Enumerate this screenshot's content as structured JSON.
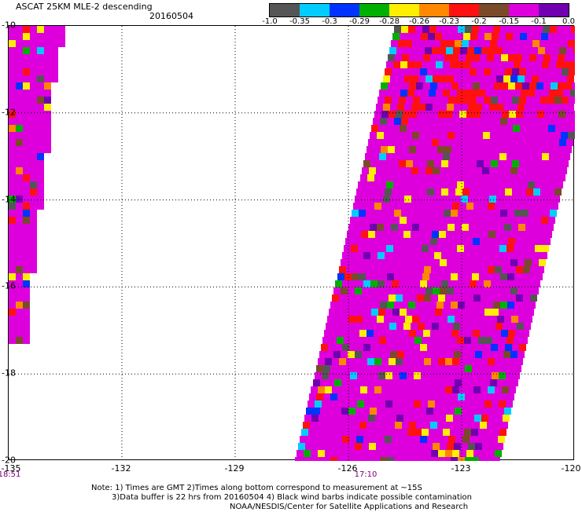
{
  "header": {
    "title": "ASCAT 25KM MLE-2 descending",
    "date": "20160504"
  },
  "colorbar": {
    "colors": [
      "#555555",
      "#00ccff",
      "#0033ff",
      "#00b000",
      "#ffee00",
      "#ff8800",
      "#ff1111",
      "#7a4a2a",
      "#dd00dd",
      "#7000b0"
    ],
    "tick_labels": [
      "-1.0",
      "-0.35",
      "-0.3",
      "-0.29",
      "-0.28",
      "-0.26",
      "-0.23",
      "-0.2",
      "-0.15",
      "-0.1",
      "0.0"
    ]
  },
  "axes": {
    "lat_labels": [
      "-10",
      "-12",
      "-14",
      "-16",
      "-18",
      "-20"
    ],
    "lon_labels": [
      "-135",
      "-132",
      "-129",
      "-126",
      "-123",
      "-120"
    ],
    "time_labels": [
      "18:51",
      "17:10"
    ]
  },
  "swaths": {
    "description_color": "#cc00cc",
    "left": {
      "lat_range": [
        -10,
        -17.3
      ],
      "lon_range": [
        -135,
        -133.5
      ]
    },
    "right": {
      "lat_range": [
        -10,
        -20
      ],
      "lon_range": [
        -126.8,
        -120.1
      ]
    }
  },
  "note": {
    "line1": "Note: 1) Times are GMT 2)Times along bottom correspond to measurement at ~15S",
    "line2": "3)Data buffer is 22 hrs from 20160504 4) Black wind barbs indicate possible contamination",
    "line3": "NOAA/NESDIS/Center for Satellite Applications and Research"
  }
}
